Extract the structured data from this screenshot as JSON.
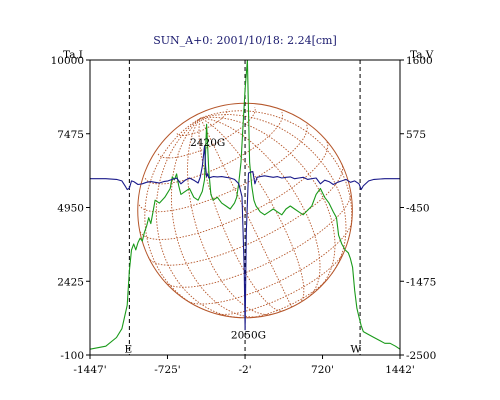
{
  "chart_data": {
    "type": "line",
    "title": "SUN_A+0: 2001/10/18: 2.24[cm]",
    "left_axis_label": "Ta,I",
    "right_axis_label": "Ta,V",
    "x_ticks": [
      "-1447'",
      "-725'",
      "-2'",
      "720'",
      "1442'"
    ],
    "x_tick_values": [
      -1447,
      -725,
      -2,
      720,
      1442
    ],
    "xlim": [
      -1447,
      1442
    ],
    "left_ticks": [
      "10000",
      "7475",
      "4950",
      "2425",
      "-100"
    ],
    "left_tick_values": [
      10000,
      7475,
      4950,
      2425,
      -100
    ],
    "ylim_left": [
      -100,
      10000
    ],
    "right_ticks": [
      "1600",
      "575",
      "-450",
      "-1475",
      "-2500"
    ],
    "right_tick_values": [
      1600,
      575,
      -450,
      -1475,
      -2500
    ],
    "ylim_right": [
      -2500,
      1600
    ],
    "annotations": [
      {
        "text": "2420G",
        "x": -350,
        "y": 7200
      },
      {
        "text": "2050G",
        "x": 30,
        "y": 600
      },
      {
        "text": "E",
        "x": -1090,
        "y": 120
      },
      {
        "text": "W",
        "x": 1030,
        "y": 120
      }
    ],
    "limb_markers_x": [
      -1080,
      -2,
      1070
    ],
    "disk": {
      "center_x": -2,
      "radius_arcmin": 1000,
      "color": "#b5562a"
    },
    "series": [
      {
        "name": "I",
        "axis": "left",
        "color": "#1a9a1a",
        "x": [
          -1447,
          -1300,
          -1200,
          -1150,
          -1100,
          -1080,
          -1060,
          -1040,
          -1020,
          -1000,
          -980,
          -960,
          -940,
          -920,
          -900,
          -880,
          -860,
          -840,
          -800,
          -750,
          -700,
          -680,
          -660,
          -640,
          -620,
          -600,
          -560,
          -520,
          -480,
          -440,
          -400,
          -380,
          -360,
          -340,
          -320,
          -300,
          -260,
          -220,
          -180,
          -140,
          -100,
          -80,
          -60,
          -40,
          -20,
          -2,
          20,
          40,
          60,
          80,
          100,
          140,
          180,
          220,
          260,
          300,
          340,
          380,
          420,
          460,
          500,
          540,
          580,
          620,
          660,
          700,
          740,
          780,
          820,
          850,
          870,
          900,
          930,
          960,
          980,
          1000,
          1020,
          1040,
          1060,
          1080,
          1100,
          1150,
          1200,
          1250,
          1300,
          1350,
          1400,
          1442
        ],
        "y": [
          100,
          200,
          500,
          800,
          1600,
          2800,
          3500,
          3700,
          3500,
          3750,
          3900,
          3800,
          4100,
          4300,
          4600,
          4400,
          4800,
          5200,
          5100,
          5300,
          5600,
          6000,
          5900,
          6100,
          5700,
          5400,
          5500,
          5600,
          5300,
          5200,
          5500,
          5900,
          7800,
          6200,
          5400,
          5200,
          5300,
          5100,
          5000,
          4900,
          5100,
          5300,
          5800,
          6500,
          7800,
          9000,
          10000,
          6500,
          5700,
          5200,
          5000,
          4800,
          4700,
          4800,
          4900,
          4800,
          4700,
          4900,
          5000,
          4900,
          4800,
          4700,
          4850,
          5000,
          5400,
          5600,
          5300,
          5100,
          4800,
          4600,
          4000,
          3700,
          3500,
          3400,
          3200,
          2900,
          2100,
          1500,
          1200,
          900,
          700,
          600,
          500,
          400,
          300,
          300,
          200,
          100
        ]
      },
      {
        "name": "V",
        "axis": "right",
        "color": "#1a1a8a",
        "x": [
          -1447,
          -1300,
          -1200,
          -1150,
          -1120,
          -1100,
          -1080,
          -1060,
          -1040,
          -1020,
          -1000,
          -960,
          -920,
          -880,
          -840,
          -800,
          -760,
          -720,
          -680,
          -640,
          -600,
          -560,
          -520,
          -480,
          -440,
          -420,
          -400,
          -380,
          -370,
          -360,
          -350,
          -340,
          -320,
          -300,
          -260,
          -220,
          -180,
          -140,
          -100,
          -60,
          -30,
          -10,
          -2,
          10,
          30,
          50,
          70,
          90,
          110,
          140,
          180,
          220,
          260,
          300,
          340,
          380,
          420,
          460,
          500,
          540,
          580,
          620,
          660,
          700,
          740,
          780,
          820,
          860,
          900,
          940,
          980,
          1020,
          1060,
          1080,
          1100,
          1150,
          1200,
          1300,
          1442
        ],
        "y": [
          -50,
          -50,
          -60,
          -80,
          -150,
          -200,
          -180,
          -80,
          -90,
          -110,
          -130,
          -120,
          -100,
          -90,
          -100,
          -110,
          -90,
          -80,
          -60,
          -40,
          -120,
          -70,
          -40,
          -70,
          -110,
          -30,
          120,
          400,
          120,
          -20,
          20,
          -40,
          -30,
          -20,
          -25,
          -20,
          -30,
          -40,
          -60,
          -120,
          -300,
          -1300,
          -2150,
          -800,
          30,
          40,
          50,
          -120,
          -30,
          -20,
          -10,
          -20,
          -30,
          -20,
          -40,
          -30,
          -25,
          -50,
          -40,
          -30,
          -60,
          -50,
          -40,
          -120,
          -70,
          -90,
          -130,
          -100,
          -80,
          -60,
          -100,
          -80,
          -120,
          -200,
          -150,
          -80,
          -60,
          -50,
          -50
        ]
      }
    ]
  }
}
